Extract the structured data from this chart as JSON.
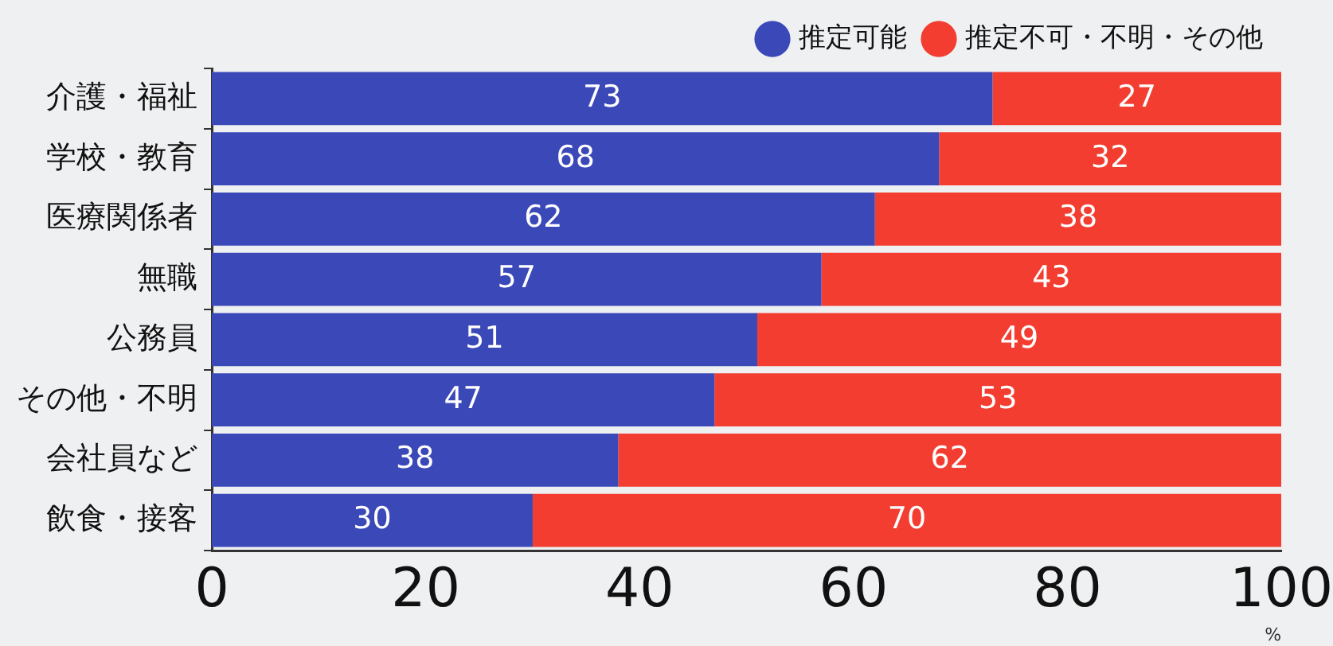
{
  "chart_data": {
    "type": "bar",
    "orientation": "horizontal",
    "stacked": true,
    "xlabel": "%",
    "categories": [
      "介護・福祉",
      "学校・教育",
      "医療関係者",
      "無職",
      "公務員",
      "その他・不明",
      "会社員など",
      "飲食・接客"
    ],
    "series": [
      {
        "name": "推定可能",
        "color": "#3a48b8",
        "values": [
          73,
          68,
          62,
          57,
          51,
          47,
          38,
          30
        ]
      },
      {
        "name": "推定不可・不明・その他",
        "color": "#f23d30",
        "values": [
          27,
          32,
          38,
          43,
          49,
          53,
          62,
          70
        ]
      }
    ],
    "xlim": [
      0,
      100
    ],
    "xticks": [
      0,
      20,
      40,
      60,
      80,
      100
    ],
    "data_labels": true,
    "legend": "top right",
    "grid": false
  }
}
